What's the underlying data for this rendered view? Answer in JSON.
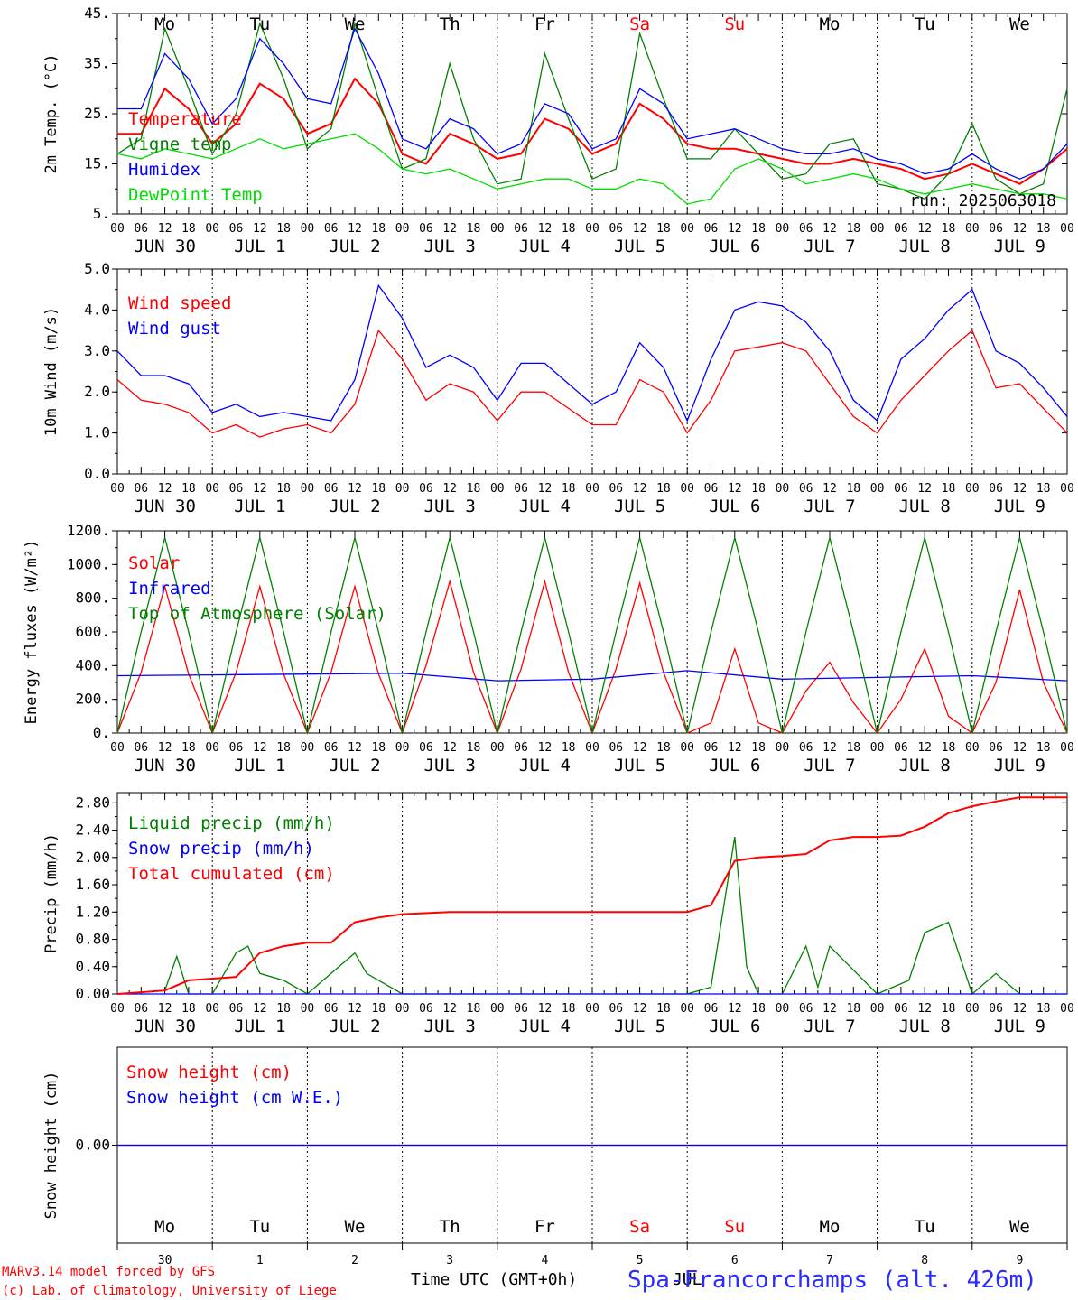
{
  "chart_data": [
    {
      "type": "line",
      "id": "temp",
      "ylabel": "2m Temp. (°C)",
      "ylim": [
        5,
        45
      ],
      "yticks": [
        "5.",
        "15.",
        "25.",
        "35.",
        "45."
      ],
      "tick_values": [
        5,
        15,
        25,
        35,
        45
      ],
      "annotation": "run: 2025063018",
      "series": [
        {
          "name": "Temperature",
          "color": "#ff0000",
          "x": [
            0,
            6,
            12,
            18,
            24,
            30,
            36,
            42,
            48,
            54,
            60,
            66,
            72,
            78,
            84,
            90,
            96,
            102,
            108,
            114,
            120,
            126,
            132,
            138,
            144,
            150,
            156,
            162,
            168,
            174,
            180,
            186,
            192,
            198,
            204,
            210,
            216,
            222,
            228,
            234,
            240
          ],
          "y": [
            21,
            21,
            30,
            26,
            19,
            23,
            31,
            28,
            21,
            23,
            32,
            27,
            17,
            15,
            21,
            19,
            16,
            17,
            24,
            22,
            17,
            19,
            27,
            24,
            19,
            18,
            18,
            17,
            16,
            15,
            15,
            16,
            15,
            14,
            12,
            13,
            15,
            13,
            11,
            14,
            18
          ]
        },
        {
          "name": "Vigne temp",
          "color": "#008000",
          "x": [
            0,
            6,
            12,
            18,
            24,
            30,
            36,
            42,
            48,
            54,
            60,
            66,
            72,
            78,
            84,
            90,
            96,
            102,
            108,
            114,
            120,
            126,
            132,
            138,
            144,
            150,
            156,
            162,
            168,
            174,
            180,
            186,
            192,
            198,
            204,
            210,
            216,
            222,
            228,
            234,
            240
          ],
          "y": [
            17,
            20,
            42,
            30,
            17,
            25,
            43,
            32,
            18,
            22,
            43,
            28,
            14,
            16,
            35,
            20,
            11,
            12,
            37,
            24,
            12,
            14,
            41,
            28,
            16,
            16,
            22,
            17,
            12,
            13,
            19,
            20,
            11,
            10,
            8,
            13,
            23,
            12,
            9,
            11,
            30
          ]
        },
        {
          "name": "Humidex",
          "color": "#0000ff",
          "x": [
            0,
            6,
            12,
            18,
            24,
            30,
            36,
            42,
            48,
            54,
            60,
            66,
            72,
            78,
            84,
            90,
            96,
            102,
            108,
            114,
            120,
            126,
            132,
            138,
            144,
            150,
            156,
            162,
            168,
            174,
            180,
            186,
            192,
            198,
            204,
            210,
            216,
            222,
            228,
            234,
            240
          ],
          "y": [
            26,
            26,
            37,
            32,
            23,
            28,
            40,
            35,
            28,
            27,
            42,
            33,
            20,
            18,
            24,
            22,
            17,
            19,
            27,
            25,
            18,
            20,
            30,
            27,
            20,
            21,
            22,
            20,
            18,
            17,
            17,
            18,
            16,
            15,
            13,
            14,
            17,
            14,
            12,
            14,
            19
          ]
        },
        {
          "name": "DewPoint Temp",
          "color": "#00dd00",
          "x": [
            0,
            6,
            12,
            18,
            24,
            30,
            36,
            42,
            48,
            54,
            60,
            66,
            72,
            78,
            84,
            90,
            96,
            102,
            108,
            114,
            120,
            126,
            132,
            138,
            144,
            150,
            156,
            162,
            168,
            174,
            180,
            186,
            192,
            198,
            204,
            210,
            216,
            222,
            228,
            234,
            240
          ],
          "y": [
            17,
            16,
            18,
            17,
            16,
            18,
            20,
            18,
            19,
            20,
            21,
            18,
            14,
            13,
            14,
            12,
            10,
            11,
            12,
            12,
            10,
            10,
            12,
            11,
            7,
            8,
            14,
            16,
            14,
            11,
            12,
            13,
            12,
            10,
            9,
            10,
            11,
            10,
            9,
            9,
            8
          ]
        }
      ]
    },
    {
      "type": "line",
      "id": "wind",
      "ylabel": "10m Wind (m/s)",
      "ylim": [
        0,
        5
      ],
      "yticks": [
        "0.0",
        "1.0",
        "2.0",
        "3.0",
        "4.0",
        "5.0"
      ],
      "tick_values": [
        0,
        1,
        2,
        3,
        4,
        5
      ],
      "series": [
        {
          "name": "Wind speed",
          "color": "#ff0000",
          "x": [
            0,
            6,
            12,
            18,
            24,
            30,
            36,
            42,
            48,
            54,
            60,
            66,
            72,
            78,
            84,
            90,
            96,
            102,
            108,
            114,
            120,
            126,
            132,
            138,
            144,
            150,
            156,
            162,
            168,
            174,
            180,
            186,
            192,
            198,
            204,
            210,
            216,
            222,
            228,
            234,
            240
          ],
          "y": [
            2.3,
            1.8,
            1.7,
            1.5,
            1.0,
            1.2,
            0.9,
            1.1,
            1.2,
            1.0,
            1.7,
            3.5,
            2.8,
            1.8,
            2.2,
            2.0,
            1.3,
            2.0,
            2.0,
            1.6,
            1.2,
            1.2,
            2.3,
            2.0,
            1.0,
            1.8,
            3.0,
            3.1,
            3.2,
            3.0,
            2.2,
            1.4,
            1.0,
            1.8,
            2.4,
            3.0,
            3.5,
            2.1,
            2.2,
            1.6,
            1.0
          ]
        },
        {
          "name": "Wind gust",
          "color": "#0000ff",
          "x": [
            0,
            6,
            12,
            18,
            24,
            30,
            36,
            42,
            48,
            54,
            60,
            66,
            72,
            78,
            84,
            90,
            96,
            102,
            108,
            114,
            120,
            126,
            132,
            138,
            144,
            150,
            156,
            162,
            168,
            174,
            180,
            186,
            192,
            198,
            204,
            210,
            216,
            222,
            228,
            234,
            240
          ],
          "y": [
            3.0,
            2.4,
            2.4,
            2.2,
            1.5,
            1.7,
            1.4,
            1.5,
            1.4,
            1.3,
            2.3,
            4.6,
            3.8,
            2.6,
            2.9,
            2.6,
            1.8,
            2.7,
            2.7,
            2.2,
            1.7,
            2.0,
            3.2,
            2.6,
            1.3,
            2.8,
            4.0,
            4.2,
            4.1,
            3.7,
            3.0,
            1.8,
            1.3,
            2.8,
            3.3,
            4.0,
            4.5,
            3.0,
            2.7,
            2.1,
            1.4
          ]
        }
      ]
    },
    {
      "type": "line",
      "id": "flux",
      "ylabel": "Energy fluxes (W/m²)",
      "ylim": [
        0,
        1200
      ],
      "yticks": [
        "0.",
        "200.",
        "400.",
        "600.",
        "800.",
        "1000.",
        "1200."
      ],
      "tick_values": [
        0,
        200,
        400,
        600,
        800,
        1000,
        1200
      ],
      "series": [
        {
          "name": "Solar",
          "color": "#ff0000",
          "x": [
            0,
            6,
            12,
            18,
            24,
            30,
            36,
            42,
            48,
            54,
            60,
            66,
            72,
            78,
            84,
            90,
            96,
            102,
            108,
            114,
            120,
            126,
            132,
            138,
            144,
            150,
            156,
            162,
            168,
            174,
            180,
            186,
            192,
            198,
            204,
            210,
            216,
            222,
            228,
            234,
            240
          ],
          "y": [
            0,
            360,
            870,
            350,
            0,
            360,
            870,
            350,
            0,
            360,
            870,
            350,
            0,
            400,
            900,
            360,
            0,
            380,
            900,
            360,
            0,
            380,
            890,
            360,
            0,
            60,
            500,
            60,
            0,
            250,
            420,
            180,
            0,
            200,
            500,
            100,
            0,
            300,
            850,
            300,
            0
          ]
        },
        {
          "name": "Infrared",
          "color": "#0000ff",
          "x": [
            0,
            24,
            48,
            72,
            96,
            120,
            144,
            168,
            192,
            216,
            240
          ],
          "y": [
            340,
            345,
            350,
            355,
            310,
            320,
            370,
            320,
            330,
            340,
            310
          ]
        },
        {
          "name": "Top of Atmosphere (Solar)",
          "color": "#008000",
          "x": [
            0,
            6,
            12,
            18,
            24,
            30,
            36,
            42,
            48,
            54,
            60,
            66,
            72,
            78,
            84,
            90,
            96,
            102,
            108,
            114,
            120,
            126,
            132,
            138,
            144,
            150,
            156,
            162,
            168,
            174,
            180,
            186,
            192,
            198,
            204,
            210,
            216,
            222,
            228,
            234,
            240
          ],
          "y": [
            0,
            600,
            1160,
            600,
            0,
            600,
            1160,
            600,
            0,
            600,
            1160,
            600,
            0,
            600,
            1160,
            600,
            0,
            600,
            1160,
            600,
            0,
            600,
            1160,
            600,
            0,
            600,
            1160,
            600,
            0,
            600,
            1160,
            600,
            0,
            600,
            1160,
            600,
            0,
            600,
            1160,
            600,
            0
          ]
        }
      ]
    },
    {
      "type": "line",
      "id": "precip",
      "ylabel": "Precip (mm/h)",
      "ylim": [
        0,
        2.95
      ],
      "yticks": [
        "0.00",
        "0.40",
        "0.80",
        "1.20",
        "1.60",
        "2.00",
        "2.40",
        "2.80"
      ],
      "tick_values": [
        0,
        0.4,
        0.8,
        1.2,
        1.6,
        2.0,
        2.4,
        2.8
      ],
      "series": [
        {
          "name": "Liquid precip (mm/h)",
          "color": "#008000",
          "x": [
            0,
            12,
            15,
            18,
            24,
            30,
            33,
            36,
            42,
            48,
            54,
            60,
            63,
            66,
            72,
            84,
            96,
            120,
            144,
            150,
            156,
            159,
            162,
            168,
            174,
            177,
            180,
            192,
            200,
            204,
            210,
            216,
            222,
            228,
            234,
            240
          ],
          "y": [
            0,
            0.05,
            0.55,
            0,
            0,
            0.6,
            0.7,
            0.3,
            0.2,
            0,
            0.3,
            0.6,
            0.3,
            0.2,
            0,
            0,
            0,
            0,
            0,
            0.1,
            2.3,
            0.4,
            0,
            0,
            0.7,
            0.1,
            0.7,
            0,
            0.2,
            0.9,
            1.05,
            0,
            0.3,
            0,
            0,
            0
          ]
        },
        {
          "name": "Snow precip (mm/h)",
          "color": "#0000ff",
          "x": [
            0,
            240
          ],
          "y": [
            0,
            0
          ]
        },
        {
          "name": "Total cumulated (cm)",
          "color": "#ff0000",
          "x": [
            0,
            12,
            18,
            30,
            36,
            42,
            48,
            54,
            60,
            66,
            72,
            84,
            96,
            120,
            144,
            150,
            156,
            162,
            168,
            174,
            180,
            186,
            192,
            198,
            204,
            210,
            216,
            222,
            228,
            234,
            240
          ],
          "y": [
            0,
            0.05,
            0.2,
            0.25,
            0.6,
            0.7,
            0.75,
            0.75,
            1.05,
            1.12,
            1.17,
            1.2,
            1.2,
            1.2,
            1.2,
            1.3,
            1.95,
            2.0,
            2.02,
            2.05,
            2.25,
            2.3,
            2.3,
            2.32,
            2.45,
            2.65,
            2.75,
            2.82,
            2.88,
            2.88,
            2.88
          ]
        }
      ]
    },
    {
      "type": "line",
      "id": "snow",
      "ylabel": "Snow height (cm)",
      "ylim": [
        -1,
        1
      ],
      "yticks": [
        "0.00"
      ],
      "tick_values": [
        0
      ],
      "series": [
        {
          "name": "Snow height (cm)",
          "color": "#ff0000",
          "x": [
            0,
            240
          ],
          "y": [
            0,
            0
          ]
        },
        {
          "name": "Snow height (cm W.E.)",
          "color": "#0000ff",
          "x": [
            0,
            240
          ],
          "y": [
            0,
            0
          ]
        }
      ]
    }
  ],
  "axis": {
    "hour_labels": [
      "00",
      "06",
      "12",
      "18"
    ],
    "final_hour_label": "00",
    "date_labels": [
      "JUN 30",
      "JUL  1",
      "JUL  2",
      "JUL  3",
      "JUL  4",
      "JUL  5",
      "JUL  6",
      "JUL  7",
      "JUL  8",
      "JUL  9"
    ],
    "weekdays": [
      {
        "label": "Mo",
        "color": "#000000"
      },
      {
        "label": "Tu",
        "color": "#000000"
      },
      {
        "label": "We",
        "color": "#000000"
      },
      {
        "label": "Th",
        "color": "#000000"
      },
      {
        "label": "Fr",
        "color": "#000000"
      },
      {
        "label": "Sa",
        "color": "#ff0000"
      },
      {
        "label": "Su",
        "color": "#ff0000"
      },
      {
        "label": "Mo",
        "color": "#000000"
      },
      {
        "label": "Tu",
        "color": "#000000"
      },
      {
        "label": "We",
        "color": "#000000"
      }
    ],
    "day_numbers": [
      "30",
      "1",
      "2",
      "3",
      "4",
      "5",
      "6",
      "7",
      "8",
      "9"
    ],
    "month_label": "JUL",
    "xlabel": "Time UTC (GMT+0h)"
  },
  "footer": {
    "model": "MARv3.14 model forced by GFS",
    "copyright": "(c) Lab. of Climatology, University of Liege",
    "location": "Spa-Francorchamps (alt. 426m)"
  },
  "colors": {
    "red": "#ff0000",
    "green": "#008000",
    "blue": "#0000ff",
    "light_green": "#00dd00",
    "footer_blue": "#2b2bff"
  }
}
